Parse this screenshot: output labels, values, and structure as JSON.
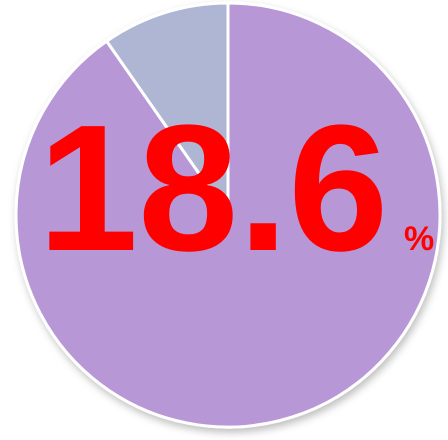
{
  "chart_data": {
    "type": "pie",
    "values": [
      90.3,
      9.7
    ],
    "colors": [
      "#b797d6",
      "#aeb6d4"
    ],
    "annotation": {
      "number": "18.6",
      "unit": "%"
    }
  }
}
